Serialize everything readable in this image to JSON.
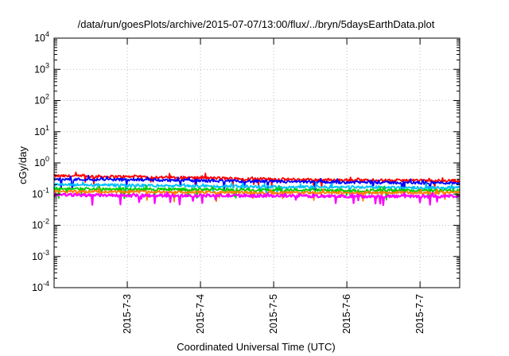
{
  "chart_data": {
    "type": "line",
    "title": "/data/run/goesPlots/archive/2015-07-07/13:00/flux/../bryn/5daysEarthData.plot",
    "xlabel": "Coordinated Universal Time (UTC)",
    "ylabel": "cGy/day",
    "x_ticks": [
      "2015-7-3",
      "2015-7-4",
      "2015-7-5",
      "2015-7-6",
      "2015-7-7"
    ],
    "xlim": [
      "2015-07-02 00:00",
      "2015-07-07 13:00"
    ],
    "y_scale": "log",
    "ylim": [
      0.0001,
      10000
    ],
    "y_ticks": [
      {
        "base": "10",
        "exp": "-4",
        "value": 0.0001
      },
      {
        "base": "10",
        "exp": "-3",
        "value": 0.001
      },
      {
        "base": "10",
        "exp": "-2",
        "value": 0.01
      },
      {
        "base": "10",
        "exp": "-1",
        "value": 0.1
      },
      {
        "base": "10",
        "exp": "0",
        "value": 1
      },
      {
        "base": "10",
        "exp": "1",
        "value": 10
      },
      {
        "base": "10",
        "exp": "2",
        "value": 100
      },
      {
        "base": "10",
        "exp": "3",
        "value": 1000
      },
      {
        "base": "10",
        "exp": "4",
        "value": 10000
      }
    ],
    "grid": true,
    "series": [
      {
        "color": "#ff0000",
        "x": [
          "2015-07-02 00:00",
          "2015-07-03 00:00",
          "2015-07-04 00:00",
          "2015-07-05 00:00",
          "2015-07-06 00:00",
          "2015-07-07 00:00",
          "2015-07-07 13:00"
        ],
        "y": [
          0.38,
          0.36,
          0.33,
          0.3,
          0.28,
          0.27,
          0.27
        ]
      },
      {
        "color": "#0000ff",
        "x": [
          "2015-07-02 00:00",
          "2015-07-03 00:00",
          "2015-07-04 00:00",
          "2015-07-05 00:00",
          "2015-07-06 00:00",
          "2015-07-07 00:00",
          "2015-07-07 13:00"
        ],
        "y": [
          0.3,
          0.29,
          0.27,
          0.25,
          0.24,
          0.23,
          0.23
        ]
      },
      {
        "color": "#00bfff",
        "x": [
          "2015-07-02 00:00",
          "2015-07-03 00:00",
          "2015-07-04 00:00",
          "2015-07-05 00:00",
          "2015-07-06 00:00",
          "2015-07-07 00:00",
          "2015-07-07 13:00"
        ],
        "y": [
          0.2,
          0.19,
          0.18,
          0.17,
          0.17,
          0.16,
          0.16
        ]
      },
      {
        "color": "#00cc00",
        "x": [
          "2015-07-02 00:00",
          "2015-07-03 00:00",
          "2015-07-04 00:00",
          "2015-07-05 00:00",
          "2015-07-06 00:00",
          "2015-07-07 00:00",
          "2015-07-07 13:00"
        ],
        "y": [
          0.15,
          0.145,
          0.14,
          0.135,
          0.13,
          0.13,
          0.13
        ]
      },
      {
        "color": "#ff7f00",
        "x": [
          "2015-07-02 00:00",
          "2015-07-03 00:00",
          "2015-07-04 00:00",
          "2015-07-05 00:00",
          "2015-07-06 00:00",
          "2015-07-07 00:00",
          "2015-07-07 13:00"
        ],
        "y": [
          0.12,
          0.12,
          0.115,
          0.11,
          0.11,
          0.11,
          0.11
        ]
      },
      {
        "color": "#ff00ff",
        "x": [
          "2015-07-02 00:00",
          "2015-07-03 00:00",
          "2015-07-04 00:00",
          "2015-07-05 00:00",
          "2015-07-06 00:00",
          "2015-07-07 00:00",
          "2015-07-07 13:00"
        ],
        "y": [
          0.095,
          0.09,
          0.09,
          0.088,
          0.085,
          0.085,
          0.085
        ]
      }
    ]
  }
}
